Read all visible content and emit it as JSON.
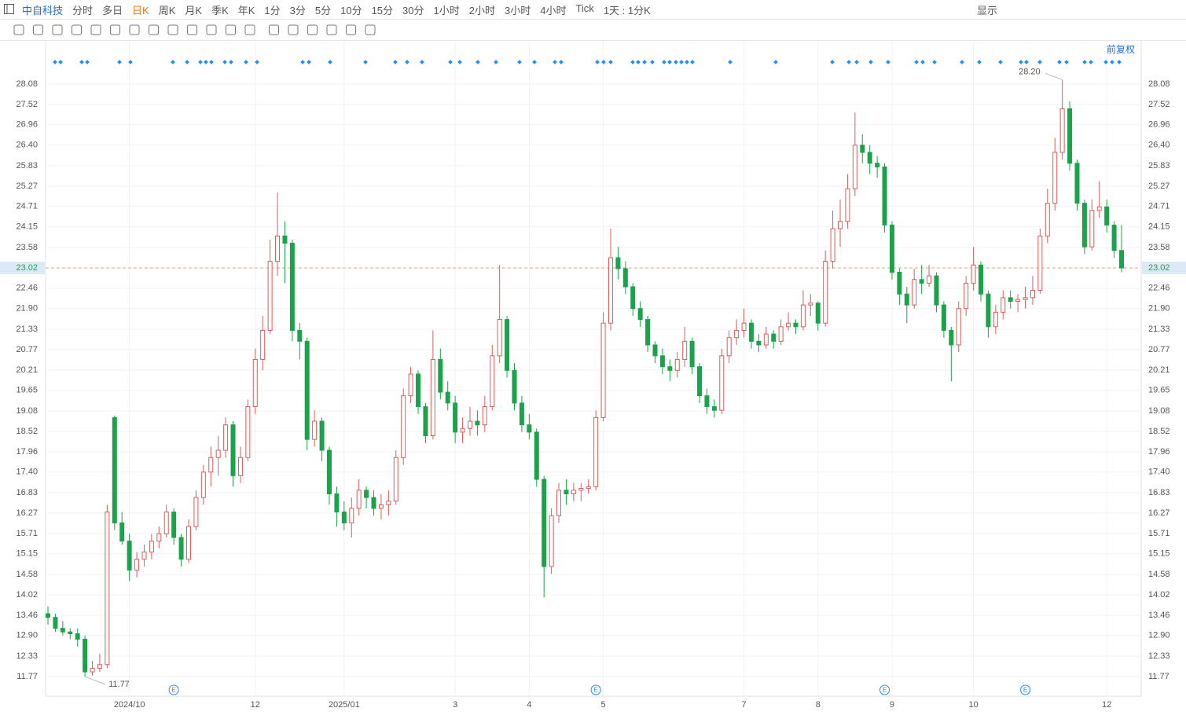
{
  "toolbar": {
    "stock": "中自科技",
    "periods": [
      "分时",
      "多日",
      "日K",
      "周K",
      "月K",
      "季K",
      "年K",
      "1分",
      "3分",
      "5分",
      "10分",
      "15分",
      "30分",
      "1小时",
      "2小时",
      "3小时",
      "4小时",
      "Tick"
    ],
    "active_period_index": 2,
    "range": "1天 : 1分K",
    "display": "显示",
    "adjust": "前复权"
  },
  "chart_data": {
    "type": "candlestick",
    "up_color": "#e05a5a",
    "down_color": "#1aa34a",
    "ylim": [
      11.23,
      29.27
    ],
    "yticks": [
      11.77,
      12.33,
      {
        "value": 12.9,
        "label": "12.90"
      },
      13.46,
      14.02,
      14.58,
      15.15,
      15.71,
      16.27,
      16.83,
      {
        "value": 17.4,
        "label": "17.40"
      },
      17.96,
      18.52,
      19.08,
      19.65,
      20.21,
      20.77,
      21.33,
      {
        "value": 21.9,
        "label": "21.90"
      },
      22.46,
      23.58,
      24.15,
      24.71,
      25.27,
      25.83,
      {
        "value": 26.4,
        "label": "26.40"
      },
      26.96,
      27.52,
      28.08
    ],
    "xticks": [
      {
        "value": 11,
        "label": "2024/10"
      },
      {
        "value": 28,
        "label": "12"
      },
      {
        "value": 40,
        "label": "2025/01"
      },
      {
        "value": 55,
        "label": "3"
      },
      {
        "value": 65,
        "label": "4"
      },
      {
        "value": 75,
        "label": "5"
      },
      {
        "value": 94,
        "label": "7"
      },
      {
        "value": 104,
        "label": "8"
      },
      {
        "value": 114,
        "label": "9"
      },
      {
        "value": 125,
        "label": "10"
      },
      {
        "value": 143,
        "label": "12"
      }
    ],
    "grid": true,
    "max_marker": {
      "value": 28.2,
      "label": "28.20"
    },
    "min_marker": {
      "value": 11.77,
      "label": "11.77"
    },
    "last_price": {
      "value": 23.02,
      "label": "23.02"
    },
    "event_icon": "E",
    "event_positions": [
      17,
      74,
      113,
      132
    ],
    "candles": [
      [
        13.5,
        13.7,
        13.2,
        13.4
      ],
      [
        13.4,
        13.5,
        13.0,
        13.1
      ],
      [
        13.1,
        13.3,
        12.9,
        13.0
      ],
      [
        13.0,
        13.1,
        12.8,
        12.95
      ],
      [
        12.95,
        13.1,
        12.6,
        12.8
      ],
      [
        12.8,
        12.9,
        11.77,
        11.9
      ],
      [
        11.9,
        12.2,
        11.8,
        12.0
      ],
      [
        12.0,
        12.4,
        11.9,
        12.1
      ],
      [
        12.1,
        16.5,
        12.0,
        16.3
      ],
      [
        18.9,
        18.95,
        15.8,
        16.0
      ],
      [
        16.0,
        16.3,
        15.4,
        15.5
      ],
      [
        15.5,
        15.7,
        14.4,
        14.7
      ],
      [
        14.7,
        15.2,
        14.5,
        15.0
      ],
      [
        15.0,
        15.4,
        14.8,
        15.2
      ],
      [
        15.2,
        15.7,
        15.0,
        15.5
      ],
      [
        15.5,
        15.9,
        15.3,
        15.7
      ],
      [
        15.7,
        16.5,
        15.6,
        16.3
      ],
      [
        16.3,
        16.4,
        15.4,
        15.6
      ],
      [
        15.6,
        15.7,
        14.8,
        15.0
      ],
      [
        15.0,
        16.1,
        14.9,
        15.9
      ],
      [
        15.9,
        16.9,
        15.8,
        16.7
      ],
      [
        16.7,
        17.6,
        16.5,
        17.4
      ],
      [
        17.4,
        18.1,
        17.0,
        17.8
      ],
      [
        17.8,
        18.4,
        17.3,
        18.0
      ],
      [
        18.0,
        18.9,
        17.8,
        18.7
      ],
      [
        18.7,
        18.8,
        17.0,
        17.3
      ],
      [
        17.3,
        18.1,
        17.1,
        17.8
      ],
      [
        17.8,
        19.4,
        17.7,
        19.2
      ],
      [
        19.2,
        20.8,
        19.0,
        20.5
      ],
      [
        20.5,
        21.7,
        20.2,
        21.3
      ],
      [
        21.3,
        23.8,
        21.2,
        23.2
      ],
      [
        23.2,
        25.1,
        22.8,
        23.9
      ],
      [
        23.9,
        24.3,
        22.6,
        23.7
      ],
      [
        23.7,
        23.8,
        21.0,
        21.3
      ],
      [
        21.3,
        21.5,
        20.5,
        21.0
      ],
      [
        21.0,
        21.1,
        18.0,
        18.3
      ],
      [
        18.3,
        19.1,
        18.1,
        18.8
      ],
      [
        18.8,
        18.9,
        17.7,
        18.0
      ],
      [
        18.0,
        18.1,
        16.5,
        16.8
      ],
      [
        16.8,
        17.0,
        15.9,
        16.3
      ],
      [
        16.3,
        16.6,
        15.8,
        16.0
      ],
      [
        16.0,
        16.7,
        15.6,
        16.4
      ],
      [
        16.4,
        17.2,
        16.2,
        16.9
      ],
      [
        16.9,
        17.0,
        16.4,
        16.7
      ],
      [
        16.7,
        16.9,
        16.2,
        16.4
      ],
      [
        16.4,
        16.8,
        16.1,
        16.5
      ],
      [
        16.5,
        16.9,
        16.2,
        16.6
      ],
      [
        16.6,
        18.0,
        16.5,
        17.8
      ],
      [
        17.8,
        19.7,
        17.6,
        19.5
      ],
      [
        19.5,
        20.3,
        19.3,
        20.1
      ],
      [
        20.1,
        20.2,
        19.0,
        19.2
      ],
      [
        19.2,
        19.3,
        18.2,
        18.4
      ],
      [
        18.4,
        21.3,
        18.3,
        20.5
      ],
      [
        20.5,
        20.8,
        19.4,
        19.6
      ],
      [
        19.6,
        19.9,
        19.1,
        19.3
      ],
      [
        19.3,
        19.5,
        18.2,
        18.5
      ],
      [
        18.5,
        18.9,
        18.2,
        18.6
      ],
      [
        18.6,
        19.2,
        18.4,
        18.8
      ],
      [
        18.8,
        19.1,
        18.4,
        18.7
      ],
      [
        18.7,
        19.5,
        18.5,
        19.2
      ],
      [
        19.2,
        20.9,
        19.1,
        20.6
      ],
      [
        20.6,
        23.1,
        20.4,
        21.6
      ],
      [
        21.6,
        21.7,
        20.0,
        20.2
      ],
      [
        20.2,
        20.4,
        19.1,
        19.3
      ],
      [
        19.3,
        19.5,
        18.5,
        18.7
      ],
      [
        18.7,
        19.0,
        18.3,
        18.5
      ],
      [
        18.5,
        18.6,
        17.0,
        17.2
      ],
      [
        17.2,
        17.3,
        13.95,
        14.8
      ],
      [
        14.8,
        16.4,
        14.6,
        16.2
      ],
      [
        16.2,
        17.1,
        16.0,
        16.9
      ],
      [
        16.9,
        17.2,
        16.5,
        16.8
      ],
      [
        16.8,
        17.1,
        16.6,
        16.9
      ],
      [
        16.9,
        17.1,
        16.6,
        16.95
      ],
      [
        16.95,
        17.2,
        16.8,
        17.0
      ],
      [
        17.0,
        19.1,
        16.9,
        18.9
      ],
      [
        18.9,
        21.8,
        18.8,
        21.5
      ],
      [
        21.5,
        24.1,
        21.3,
        23.3
      ],
      [
        23.3,
        23.6,
        22.7,
        23.0
      ],
      [
        23.0,
        23.2,
        22.3,
        22.5
      ],
      [
        22.5,
        22.6,
        21.7,
        21.9
      ],
      [
        21.9,
        22.1,
        21.4,
        21.6
      ],
      [
        21.6,
        21.7,
        20.7,
        20.9
      ],
      [
        20.9,
        21.0,
        20.4,
        20.6
      ],
      [
        20.6,
        20.8,
        20.1,
        20.3
      ],
      [
        20.3,
        20.5,
        19.9,
        20.2
      ],
      [
        20.2,
        20.7,
        20.0,
        20.5
      ],
      [
        20.5,
        21.4,
        20.3,
        21.0
      ],
      [
        21.0,
        21.1,
        20.1,
        20.3
      ],
      [
        20.3,
        20.4,
        19.3,
        19.5
      ],
      [
        19.5,
        19.7,
        19.0,
        19.2
      ],
      [
        19.2,
        19.4,
        18.9,
        19.1
      ],
      [
        19.1,
        20.8,
        19.0,
        20.6
      ],
      [
        20.6,
        21.3,
        20.4,
        21.1
      ],
      [
        21.1,
        21.6,
        20.9,
        21.3
      ],
      [
        21.3,
        21.9,
        21.1,
        21.5
      ],
      [
        21.5,
        21.6,
        20.8,
        21.0
      ],
      [
        21.0,
        21.2,
        20.7,
        20.9
      ],
      [
        20.9,
        21.4,
        20.8,
        21.2
      ],
      [
        21.2,
        21.3,
        20.8,
        21.0
      ],
      [
        21.0,
        21.6,
        20.9,
        21.4
      ],
      [
        21.4,
        21.8,
        21.3,
        21.5
      ],
      [
        21.5,
        21.6,
        21.2,
        21.4
      ],
      [
        21.4,
        22.4,
        21.3,
        22.0
      ],
      [
        22.0,
        22.3,
        21.7,
        22.05
      ],
      [
        22.05,
        22.1,
        21.3,
        21.5
      ],
      [
        21.5,
        23.5,
        21.4,
        23.2
      ],
      [
        23.2,
        24.6,
        23.0,
        24.1
      ],
      [
        24.1,
        24.9,
        23.6,
        24.3
      ],
      [
        24.3,
        25.6,
        24.1,
        25.2
      ],
      [
        25.2,
        27.3,
        25.0,
        26.4
      ],
      [
        26.4,
        26.7,
        25.9,
        26.2
      ],
      [
        26.2,
        26.4,
        25.6,
        25.9
      ],
      [
        25.9,
        26.1,
        25.5,
        25.8
      ],
      [
        25.8,
        25.9,
        24.0,
        24.2
      ],
      [
        24.2,
        24.3,
        22.7,
        22.9
      ],
      [
        22.9,
        23.0,
        22.0,
        22.3
      ],
      [
        22.3,
        22.5,
        21.5,
        22.0
      ],
      [
        22.0,
        23.0,
        21.9,
        22.7
      ],
      [
        22.7,
        23.1,
        22.3,
        22.6
      ],
      [
        22.6,
        23.1,
        22.5,
        22.8
      ],
      [
        22.8,
        22.9,
        21.8,
        22.0
      ],
      [
        22.0,
        22.1,
        21.1,
        21.3
      ],
      [
        21.3,
        21.4,
        19.9,
        20.9
      ],
      [
        20.9,
        22.1,
        20.7,
        21.9
      ],
      [
        21.9,
        22.8,
        21.7,
        22.6
      ],
      [
        22.6,
        23.6,
        22.4,
        23.1
      ],
      [
        23.1,
        23.2,
        22.1,
        22.3
      ],
      [
        22.3,
        22.4,
        21.1,
        21.4
      ],
      [
        21.4,
        22.0,
        21.2,
        21.8
      ],
      [
        21.8,
        22.4,
        21.6,
        22.2
      ],
      [
        22.2,
        22.4,
        21.9,
        22.1
      ],
      [
        22.1,
        22.3,
        21.8,
        22.15
      ],
      [
        22.15,
        22.5,
        21.9,
        22.2
      ],
      [
        22.2,
        22.8,
        22.0,
        22.4
      ],
      [
        22.4,
        24.1,
        22.3,
        23.9
      ],
      [
        23.9,
        25.2,
        23.7,
        24.8
      ],
      [
        24.8,
        26.6,
        24.6,
        26.2
      ],
      [
        26.2,
        28.2,
        26.0,
        27.4
      ],
      [
        27.4,
        27.6,
        25.7,
        25.9
      ],
      [
        25.9,
        26.0,
        24.6,
        24.8
      ],
      [
        24.8,
        24.9,
        23.4,
        23.6
      ],
      [
        23.6,
        24.9,
        23.5,
        24.6
      ],
      [
        24.6,
        25.4,
        24.4,
        24.7
      ],
      [
        24.7,
        24.9,
        24.0,
        24.2
      ],
      [
        24.2,
        24.3,
        23.3,
        23.5
      ],
      [
        23.5,
        24.2,
        22.9,
        23.02
      ]
    ]
  }
}
